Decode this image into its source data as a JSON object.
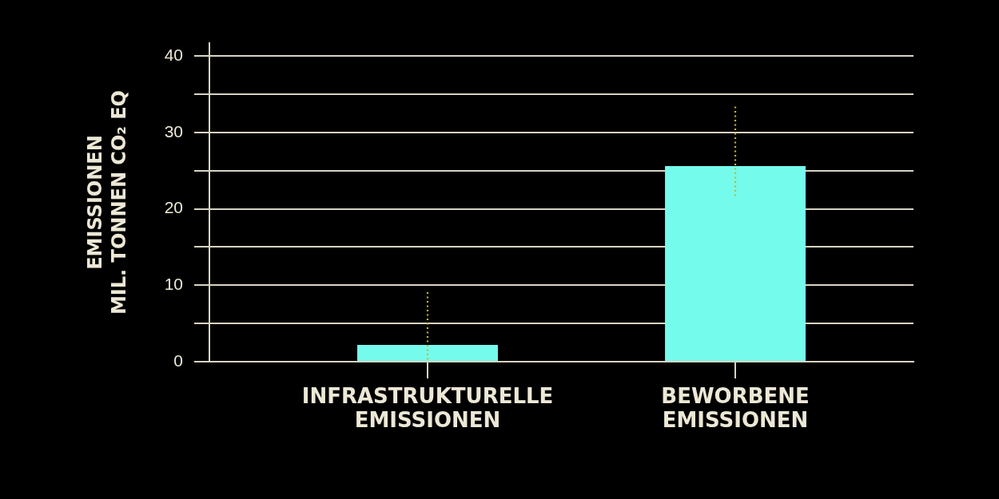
{
  "chart_data": {
    "type": "bar",
    "categories": [
      "INFRASTRUKTURELLE EMISSIONEN",
      "BEWORBENE EMISSIONEN"
    ],
    "values": [
      2.2,
      25.6
    ],
    "errors": [
      [
        0,
        9.1
      ],
      [
        21.5,
        33.4
      ]
    ],
    "color": "#75fbec",
    "ylabel": "EMISSIONEN\nMIL. TONNEN CO₂ EQ",
    "ylim": [
      0,
      41.7
    ],
    "yticks": [
      0,
      {
        "value": 5,
        "label": null
      },
      10,
      {
        "value": 15,
        "label": null
      },
      20,
      {
        "value": 25,
        "label": null
      },
      30,
      {
        "value": 35,
        "label": null
      },
      40
    ],
    "grid": "y"
  }
}
